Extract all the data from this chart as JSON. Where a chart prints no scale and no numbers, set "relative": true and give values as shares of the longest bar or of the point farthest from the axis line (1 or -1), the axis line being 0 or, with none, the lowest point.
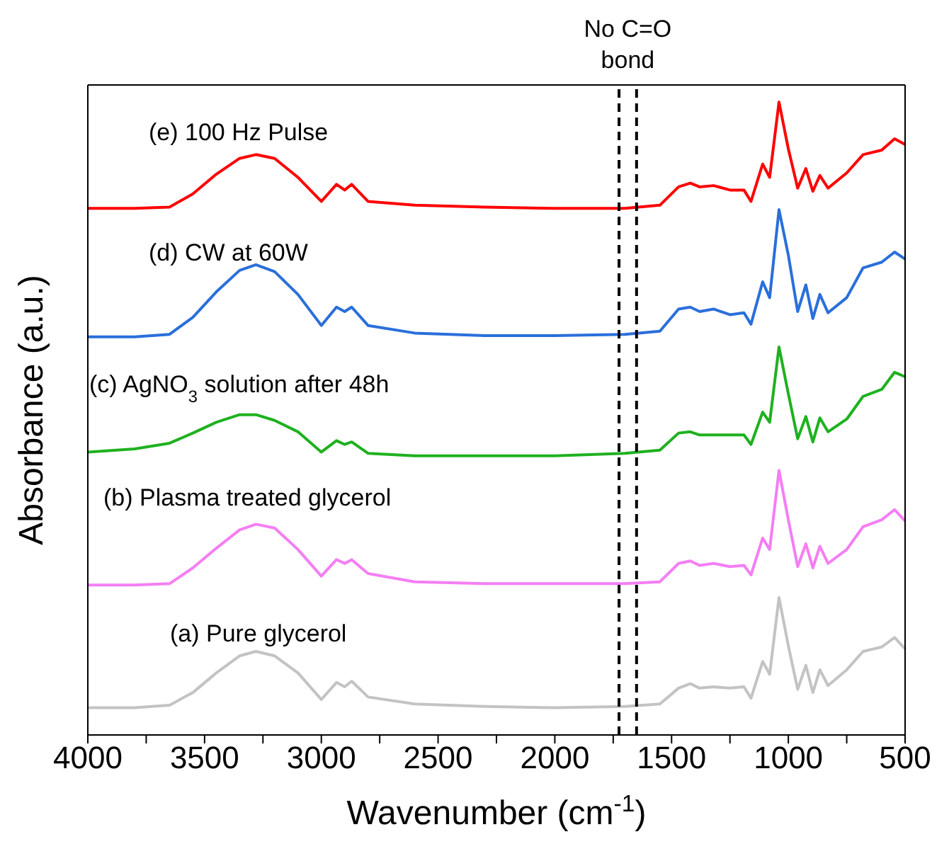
{
  "chart_data": {
    "type": "line",
    "relative": true,
    "xlabel": "Wavenumber (cm$^{-1}$)",
    "ylabel": "Absorbance (a.u.)",
    "annotations": [
      "No C=O bond"
    ],
    "xlim": [
      4000,
      500
    ],
    "xticks": [
      4000,
      {
        "value": 3750,
        "label": null
      },
      3500,
      {
        "value": 3250,
        "label": null
      },
      3000,
      {
        "value": 2750,
        "label": null
      },
      2500,
      {
        "value": 2250,
        "label": null
      },
      2000,
      {
        "value": 1750,
        "label": null
      },
      1500,
      {
        "value": 1250,
        "label": null
      },
      1000,
      {
        "value": 750,
        "label": null
      },
      500
    ],
    "x": [
      4000,
      3800,
      3650,
      3550,
      3450,
      3350,
      3280,
      3200,
      3100,
      3000,
      2935,
      2900,
      2870,
      2800,
      2600,
      2300,
      2000,
      1700,
      1550,
      1470,
      1420,
      1380,
      1320,
      1250,
      1190,
      1160,
      1110,
      1080,
      1040,
      1000,
      960,
      925,
      895,
      865,
      830,
      750,
      680,
      600,
      545,
      500
    ],
    "ref_lines": [
      {
        "axis": "x",
        "value": 1725,
        "color": "#000000",
        "line_style": "dashed"
      },
      {
        "axis": "x",
        "value": 1650,
        "color": "#000000",
        "line_style": "dashed"
      }
    ],
    "series": [
      {
        "name": "(e) 100 Hz Pulse",
        "color": "#ff0000",
        "values": [
          0.832,
          0.832,
          0.834,
          0.855,
          0.886,
          0.911,
          0.917,
          0.911,
          0.881,
          0.843,
          0.87,
          0.861,
          0.87,
          0.843,
          0.837,
          0.834,
          0.832,
          0.832,
          0.837,
          0.866,
          0.872,
          0.866,
          0.868,
          0.861,
          0.861,
          0.843,
          0.902,
          0.881,
          1,
          0.926,
          0.864,
          0.895,
          0.859,
          0.884,
          0.864,
          0.888,
          0.917,
          0.924,
          0.942,
          0.933
        ]
      },
      {
        "name": "(d) CW at 60W",
        "color": "#2a6fdb",
        "values": [
          0.629,
          0.629,
          0.633,
          0.66,
          0.7,
          0.734,
          0.743,
          0.732,
          0.696,
          0.647,
          0.676,
          0.669,
          0.676,
          0.647,
          0.635,
          0.631,
          0.631,
          0.633,
          0.638,
          0.673,
          0.676,
          0.669,
          0.673,
          0.664,
          0.667,
          0.649,
          0.716,
          0.691,
          0.83,
          0.758,
          0.669,
          0.711,
          0.658,
          0.696,
          0.667,
          0.691,
          0.738,
          0.747,
          0.763,
          0.752
        ]
      },
      {
        "name": "(c) AgNO$_{3}$ solution after 48h",
        "color": "#1fb11f",
        "values": [
          0.447,
          0.452,
          0.461,
          0.477,
          0.494,
          0.506,
          0.506,
          0.497,
          0.479,
          0.447,
          0.465,
          0.459,
          0.463,
          0.445,
          0.441,
          0.441,
          0.441,
          0.445,
          0.45,
          0.477,
          0.479,
          0.474,
          0.474,
          0.474,
          0.474,
          0.459,
          0.51,
          0.494,
          0.613,
          0.539,
          0.468,
          0.503,
          0.463,
          0.501,
          0.479,
          0.499,
          0.535,
          0.546,
          0.573,
          0.566
        ]
      },
      {
        "name": "(b) Plasma treated glycerol",
        "color": "#f47ef4",
        "values": [
          0.237,
          0.237,
          0.239,
          0.264,
          0.295,
          0.324,
          0.333,
          0.327,
          0.293,
          0.251,
          0.277,
          0.271,
          0.277,
          0.255,
          0.242,
          0.239,
          0.239,
          0.239,
          0.242,
          0.271,
          0.275,
          0.268,
          0.271,
          0.266,
          0.268,
          0.253,
          0.311,
          0.293,
          0.418,
          0.34,
          0.266,
          0.302,
          0.264,
          0.298,
          0.271,
          0.293,
          0.329,
          0.34,
          0.356,
          0.338
        ]
      },
      {
        "name": "(a) Pure glycerol",
        "color": "#c3c3c3",
        "values": [
          0.043,
          0.043,
          0.047,
          0.067,
          0.098,
          0.125,
          0.132,
          0.125,
          0.098,
          0.056,
          0.083,
          0.076,
          0.085,
          0.06,
          0.049,
          0.045,
          0.043,
          0.045,
          0.049,
          0.074,
          0.081,
          0.074,
          0.076,
          0.074,
          0.076,
          0.058,
          0.116,
          0.096,
          0.217,
          0.141,
          0.072,
          0.11,
          0.067,
          0.103,
          0.078,
          0.103,
          0.132,
          0.139,
          0.154,
          0.136
        ]
      }
    ]
  }
}
